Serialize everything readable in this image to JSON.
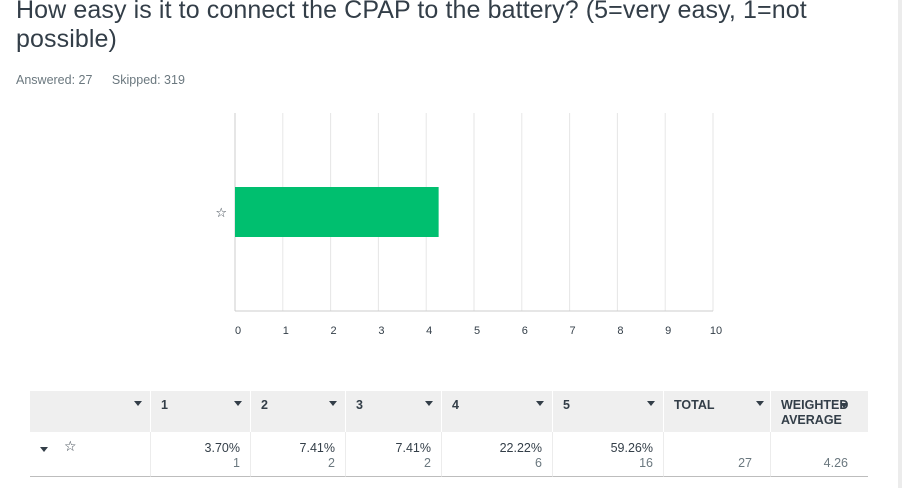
{
  "question": {
    "title": "How easy is it to connect the CPAP to the battery? (5=very easy, 1=not possible)",
    "answered": "Answered: 27",
    "skipped": "Skipped: 319"
  },
  "colors": {
    "bar": "#00bf6f",
    "grid": "#e6e6e6",
    "axis": "#cccccc",
    "header_bg": "#efefef"
  },
  "chart_data": {
    "type": "bar",
    "orientation": "horizontal",
    "categories": [
      "☆"
    ],
    "values": [
      4.26
    ],
    "xlim": [
      0,
      10
    ],
    "xticks": [
      "0",
      "1",
      "2",
      "3",
      "4",
      "5",
      "6",
      "7",
      "8",
      "9",
      "10"
    ],
    "grid": true,
    "title": "",
    "xlabel": "",
    "ylabel": ""
  },
  "table": {
    "headers": [
      "1",
      "2",
      "3",
      "4",
      "5",
      "TOTAL",
      "WEIGHTED",
      "AVERAGE"
    ],
    "row_label": "☆",
    "cells": [
      {
        "pct": "3.70%",
        "count": "1"
      },
      {
        "pct": "7.41%",
        "count": "2"
      },
      {
        "pct": "7.41%",
        "count": "2"
      },
      {
        "pct": "22.22%",
        "count": "6"
      },
      {
        "pct": "59.26%",
        "count": "16"
      }
    ],
    "total": "27",
    "weighted_average": "4.26"
  }
}
